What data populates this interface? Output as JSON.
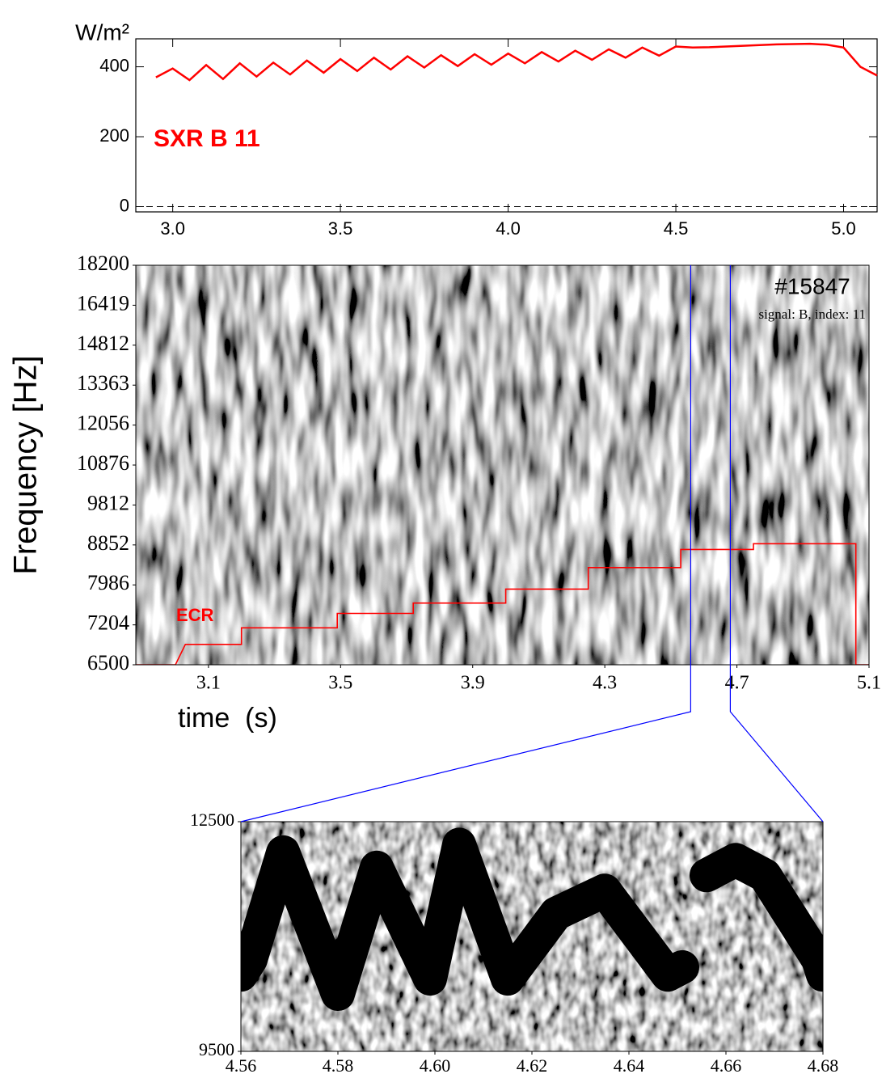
{
  "chart_data": [
    {
      "type": "line",
      "y_label": "W/m²",
      "annotation": "SXR B 11",
      "color": "#ff0000",
      "x": [
        2.95,
        3.0,
        3.05,
        3.1,
        3.15,
        3.2,
        3.25,
        3.3,
        3.35,
        3.4,
        3.45,
        3.5,
        3.55,
        3.6,
        3.65,
        3.7,
        3.75,
        3.8,
        3.85,
        3.9,
        3.95,
        4.0,
        4.05,
        4.1,
        4.15,
        4.2,
        4.25,
        4.3,
        4.35,
        4.4,
        4.45,
        4.5,
        4.55,
        4.6,
        4.65,
        4.7,
        4.75,
        4.8,
        4.85,
        4.9,
        4.95,
        5.0,
        5.05,
        5.1
      ],
      "values": [
        370,
        395,
        362,
        405,
        365,
        410,
        372,
        412,
        378,
        418,
        383,
        422,
        388,
        426,
        392,
        430,
        398,
        433,
        402,
        436,
        406,
        438,
        410,
        442,
        415,
        446,
        420,
        450,
        426,
        455,
        432,
        458,
        455,
        456,
        458,
        460,
        462,
        464,
        465,
        466,
        463,
        455,
        400,
        375
      ],
      "xlim": [
        2.89,
        5.1
      ],
      "ylim": [
        -15,
        480
      ],
      "xticks": [
        {
          "value": 3,
          "label": "3.0"
        },
        3.5,
        {
          "value": 4,
          "label": "4.0"
        },
        4.5,
        {
          "value": 5,
          "label": "5.0"
        }
      ],
      "yticks": [
        0,
        200,
        400
      ]
    },
    {
      "type": "spectrogram",
      "y_label": "Frequency [Hz]",
      "x_label": "time  (s)",
      "title": "#15847",
      "subtitle": "signal: B, index:  11",
      "yscale": "log",
      "xlim": [
        2.88,
        5.1
      ],
      "ylim": [
        6500,
        18200
      ],
      "xticks": [
        3.1,
        3.5,
        3.9,
        4.3,
        4.7,
        5.1
      ],
      "yticks": [
        6500,
        7204,
        7986,
        8852,
        9812,
        10876,
        12056,
        13363,
        14812,
        16419,
        18200
      ],
      "overlay": {
        "name": "ECR",
        "color": "#ff0000",
        "x": [
          2.88,
          3.0,
          3.03,
          3.2,
          3.2,
          3.49,
          3.49,
          3.72,
          3.72,
          4.0,
          4.0,
          4.25,
          4.25,
          4.53,
          4.53,
          4.75,
          4.75,
          5.06,
          5.06,
          5.1
        ],
        "values": [
          6500,
          6500,
          6850,
          6850,
          7150,
          7150,
          7420,
          7420,
          7620,
          7620,
          7900,
          7900,
          8350,
          8350,
          8750,
          8750,
          8880,
          8880,
          6500,
          6500
        ]
      }
    },
    {
      "type": "spectrogram",
      "zoom_color": "#0000ff",
      "xlim": [
        4.56,
        4.68
      ],
      "ylim": [
        9500,
        12500
      ],
      "xticks": [
        4.56,
        4.58,
        {
          "value": 4.6,
          "label": "4.60"
        },
        4.62,
        4.64,
        4.66,
        4.68
      ],
      "yticks": [
        9500,
        12500
      ],
      "ridge": {
        "color": "#000000",
        "x": [
          4.56,
          4.562,
          4.5687,
          4.58,
          4.588,
          4.599,
          4.605,
          4.615,
          4.625,
          4.635,
          4.648,
          4.651,
          4.653,
          4.656,
          4.662,
          4.668,
          4.672,
          4.679,
          4.68
        ],
        "values": [
          10500,
          10700,
          12100,
          10250,
          11900,
          10450,
          12200,
          10450,
          11300,
          11600,
          10500,
          10600,
          null,
          11800,
          12000,
          11800,
          11400,
          10700,
          10500
        ]
      }
    }
  ]
}
